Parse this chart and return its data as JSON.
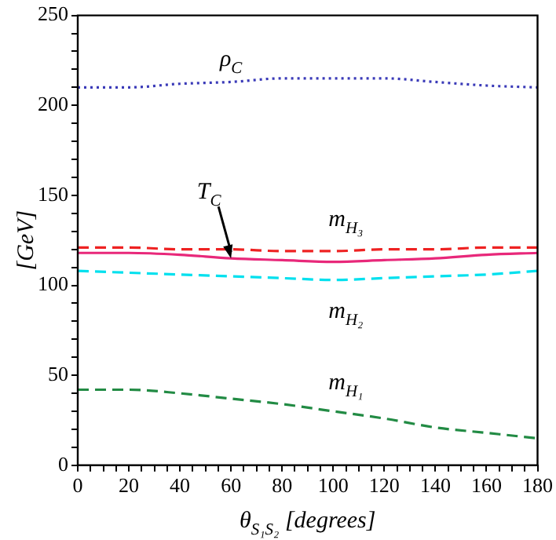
{
  "chart_data": {
    "type": "line",
    "xlabel": "θ$_{S₁S₂}$ [degrees]",
    "ylabel": "[GeV]",
    "x": [
      0,
      20,
      40,
      60,
      80,
      100,
      120,
      140,
      160,
      180
    ],
    "series": [
      {
        "name": "ρ$_{C}$",
        "color": "#3a3ab8",
        "line_style": "dotted",
        "values": [
          210,
          210,
          212,
          213,
          215,
          215,
          215,
          213,
          211,
          210
        ]
      },
      {
        "name": "m$_{H₃}$",
        "color": "#ee2222",
        "line_style": "dashed",
        "values": [
          121,
          121,
          120,
          120,
          119,
          119,
          120,
          120,
          121,
          121
        ]
      },
      {
        "name": "T$_{C}$",
        "color": "#e8287a",
        "line_style": "solid",
        "values": [
          118,
          118,
          117,
          115,
          114,
          113,
          114,
          115,
          117,
          118
        ]
      },
      {
        "name": "m$_{H₂}$",
        "color": "#00e0ee",
        "line_style": "dashed",
        "values": [
          108,
          107,
          106,
          105,
          104,
          103,
          104,
          105,
          106,
          108
        ]
      },
      {
        "name": "m$_{H₁}$",
        "color": "#228b44",
        "line_style": "dashed",
        "values": [
          42,
          42,
          40,
          37,
          34,
          30,
          26,
          21,
          18,
          15
        ]
      }
    ],
    "xlim": [
      0,
      180
    ],
    "xticks": [
      0,
      {
        "value": 5,
        "label": null
      },
      {
        "value": 10,
        "label": null
      },
      {
        "value": 15,
        "label": null
      },
      20,
      {
        "value": 25,
        "label": null
      },
      {
        "value": 30,
        "label": null
      },
      {
        "value": 35,
        "label": null
      },
      40,
      {
        "value": 45,
        "label": null
      },
      {
        "value": 50,
        "label": null
      },
      {
        "value": 55,
        "label": null
      },
      60,
      {
        "value": 65,
        "label": null
      },
      {
        "value": 70,
        "label": null
      },
      {
        "value": 75,
        "label": null
      },
      80,
      {
        "value": 85,
        "label": null
      },
      {
        "value": 90,
        "label": null
      },
      {
        "value": 95,
        "label": null
      },
      100,
      {
        "value": 105,
        "label": null
      },
      {
        "value": 110,
        "label": null
      },
      {
        "value": 115,
        "label": null
      },
      120,
      {
        "value": 125,
        "label": null
      },
      {
        "value": 130,
        "label": null
      },
      {
        "value": 135,
        "label": null
      },
      140,
      {
        "value": 145,
        "label": null
      },
      {
        "value": 150,
        "label": null
      },
      {
        "value": 155,
        "label": null
      },
      160,
      {
        "value": 165,
        "label": null
      },
      {
        "value": 170,
        "label": null
      },
      {
        "value": 175,
        "label": null
      },
      180
    ],
    "ylim": [
      0,
      250
    ],
    "yticks": [
      0,
      {
        "value": 10,
        "label": null
      },
      {
        "value": 20,
        "label": null
      },
      {
        "value": 30,
        "label": null
      },
      {
        "value": 40,
        "label": null
      },
      50,
      {
        "value": 60,
        "label": null
      },
      {
        "value": 70,
        "label": null
      },
      {
        "value": 80,
        "label": null
      },
      {
        "value": 90,
        "label": null
      },
      100,
      {
        "value": 110,
        "label": null
      },
      {
        "value": 120,
        "label": null
      },
      {
        "value": 130,
        "label": null
      },
      {
        "value": 140,
        "label": null
      },
      150,
      {
        "value": 160,
        "label": null
      },
      {
        "value": 170,
        "label": null
      },
      {
        "value": 180,
        "label": null
      },
      {
        "value": 190,
        "label": null
      },
      200,
      {
        "value": 210,
        "label": null
      },
      {
        "value": 220,
        "label": null
      },
      {
        "value": 230,
        "label": null
      },
      {
        "value": 240,
        "label": null
      },
      250
    ],
    "grid": false,
    "legend": false
  }
}
